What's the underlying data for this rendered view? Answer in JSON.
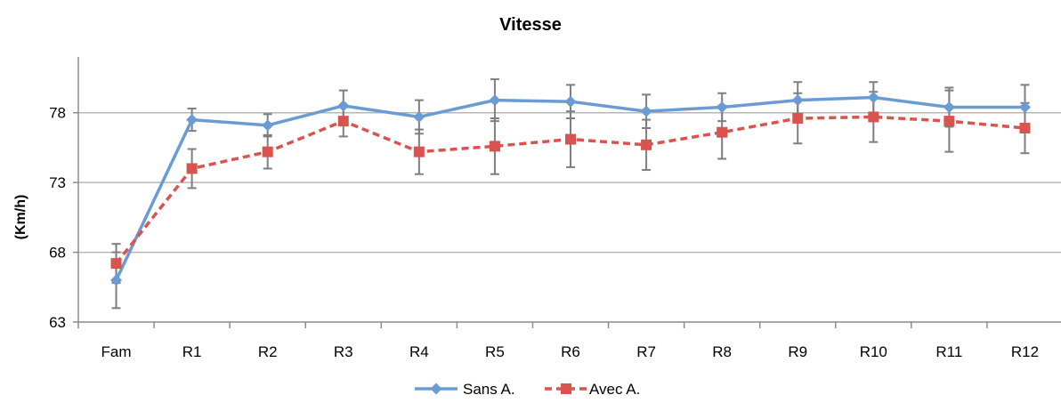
{
  "chart_data": {
    "type": "line",
    "title": "Vitesse",
    "xlabel": "",
    "ylabel": "(Km/h)",
    "categories": [
      "Fam",
      "R1",
      "R2",
      "R3",
      "R4",
      "R5",
      "R6",
      "R7",
      "R8",
      "R9",
      "R10",
      "R11",
      "R12"
    ],
    "ylim": [
      63,
      83
    ],
    "yticks": [
      63,
      68,
      73,
      78
    ],
    "grid": "horizontal",
    "legend_position": "bottom",
    "series": [
      {
        "name": "Sans A.",
        "color": "#6a9bd3",
        "line_style": "solid",
        "marker": "diamond",
        "values": [
          66.0,
          77.5,
          77.1,
          78.5,
          77.7,
          78.9,
          78.8,
          78.1,
          78.4,
          78.9,
          79.1,
          78.4,
          78.4
        ],
        "errors": [
          2.0,
          0.8,
          0.8,
          1.1,
          1.2,
          1.5,
          1.2,
          1.2,
          1.0,
          1.3,
          1.1,
          1.4,
          1.6
        ]
      },
      {
        "name": "Avec A.",
        "color": "#d9534f",
        "line_style": "dashed",
        "marker": "square",
        "values": [
          67.2,
          74.0,
          75.2,
          77.4,
          75.2,
          75.6,
          76.1,
          75.7,
          76.6,
          77.6,
          77.7,
          77.4,
          76.9
        ],
        "errors": [
          1.4,
          1.4,
          1.2,
          1.1,
          1.6,
          2.0,
          2.0,
          1.8,
          1.9,
          1.8,
          1.8,
          2.2,
          1.8
        ]
      }
    ]
  }
}
